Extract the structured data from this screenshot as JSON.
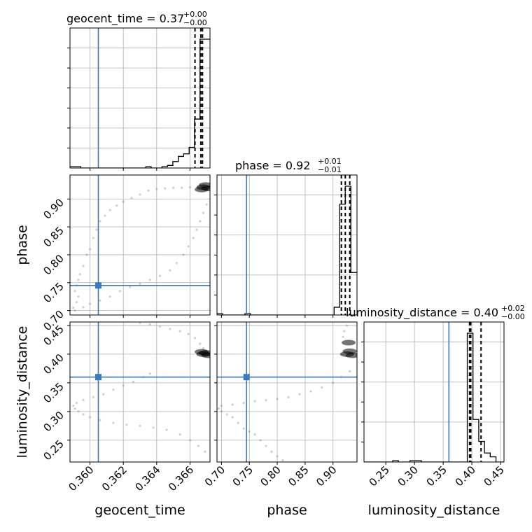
{
  "chart_data": {
    "type": "scatter",
    "plot_kind": "corner",
    "parameters": [
      "geocent_time",
      "phase",
      "luminosity_distance"
    ],
    "truths": {
      "geocent_time": 0.3605,
      "phase": 0.745,
      "luminosity_distance": 0.36
    },
    "ranges": {
      "geocent_time": [
        0.3588,
        0.3672
      ],
      "phase": [
        0.692,
        0.943
      ],
      "luminosity_distance": [
        0.212,
        0.456
      ]
    },
    "ticks": {
      "geocent_time": [
        "0.360",
        "0.362",
        "0.364",
        "0.366"
      ],
      "phase": [
        "0.70",
        "0.75",
        "0.80",
        "0.85",
        "0.90"
      ],
      "luminosity_distance": [
        "0.25",
        "0.30",
        "0.35",
        "0.40",
        "0.45"
      ]
    },
    "titles": {
      "geocent_time": {
        "main": "geocent_time = 0.37",
        "sup": "+0.00",
        "sub": "−0.00"
      },
      "phase": {
        "main": "phase = 0.92",
        "sup": "+0.01",
        "sub": "−0.01"
      },
      "luminosity_distance": {
        "main": "luminosity_distance = 0.40",
        "sup": "+0.02",
        "sub": "−0.00"
      }
    },
    "axis_labels": {
      "geocent_time": "geocent_time",
      "phase": "phase",
      "luminosity_distance": "luminosity_distance"
    },
    "quantiles": {
      "geocent_time": [
        0.3663,
        0.36665,
        0.36675
      ],
      "phase": [
        0.915,
        0.922,
        0.93
      ],
      "luminosity_distance": [
        0.396,
        0.398,
        0.416
      ]
    },
    "histograms": {
      "geocent_time": {
        "edges": [
          0.3588,
          0.35912,
          0.35945,
          0.35977,
          0.3601,
          0.36042,
          0.36075,
          0.36107,
          0.3614,
          0.36172,
          0.36205,
          0.36237,
          0.3627,
          0.36302,
          0.36335,
          0.36367,
          0.364,
          0.36432,
          0.36465,
          0.36497,
          0.3653,
          0.36562,
          0.36595,
          0.36627,
          0.3666,
          0.36692,
          0.3672
        ],
        "counts": [
          0.01,
          0.01,
          0.0,
          0.0,
          0.0,
          0.0,
          0.0,
          0.0,
          0.0,
          0.0,
          0.0,
          0.0,
          0.0,
          0.0,
          0.01,
          0.0,
          0.0,
          0.01,
          0.02,
          0.05,
          0.09,
          0.11,
          0.16,
          0.38,
          1.0,
          1.0
        ]
      },
      "phase": {
        "edges": [
          0.692,
          0.702,
          0.712,
          0.722,
          0.732,
          0.742,
          0.752,
          0.762,
          0.772,
          0.782,
          0.792,
          0.802,
          0.812,
          0.822,
          0.832,
          0.842,
          0.852,
          0.862,
          0.872,
          0.882,
          0.892,
          0.902,
          0.912,
          0.922,
          0.932,
          0.943
        ],
        "counts": [
          0.01,
          0.0,
          0.0,
          0.0,
          0.0,
          0.01,
          0.0,
          0.0,
          0.0,
          0.0,
          0.0,
          0.0,
          0.0,
          0.0,
          0.0,
          0.0,
          0.0,
          0.0,
          0.0,
          0.0,
          0.0,
          0.06,
          0.86,
          1.0,
          0.33
        ]
      },
      "luminosity_distance": {
        "edges": [
          0.212,
          0.222,
          0.232,
          0.242,
          0.252,
          0.262,
          0.272,
          0.282,
          0.292,
          0.302,
          0.312,
          0.322,
          0.332,
          0.342,
          0.352,
          0.362,
          0.372,
          0.382,
          0.392,
          0.402,
          0.412,
          0.422,
          0.432,
          0.442,
          0.456
        ],
        "counts": [
          0.0,
          0.0,
          0.0,
          0.0,
          0.0,
          0.01,
          0.0,
          0.0,
          0.01,
          0.01,
          0.0,
          0.0,
          0.0,
          0.0,
          0.0,
          0.0,
          0.0,
          0.0,
          1.0,
          0.33,
          0.16,
          0.07,
          0.04,
          0.0
        ]
      }
    },
    "samples": {
      "phase_vs_geocent_time": [
        [
          0.3591,
          0.7
        ],
        [
          0.359,
          0.705
        ],
        [
          0.3592,
          0.715
        ],
        [
          0.3593,
          0.725
        ],
        [
          0.3591,
          0.735
        ],
        [
          0.3592,
          0.745
        ],
        [
          0.3593,
          0.755
        ],
        [
          0.3594,
          0.765
        ],
        [
          0.3596,
          0.78
        ],
        [
          0.3598,
          0.8
        ],
        [
          0.36,
          0.81
        ],
        [
          0.3602,
          0.83
        ],
        [
          0.3604,
          0.845
        ],
        [
          0.3606,
          0.86
        ],
        [
          0.3609,
          0.87
        ],
        [
          0.3612,
          0.88
        ],
        [
          0.3616,
          0.888
        ],
        [
          0.362,
          0.895
        ],
        [
          0.3625,
          0.902
        ],
        [
          0.363,
          0.908
        ],
        [
          0.3635,
          0.915
        ],
        [
          0.364,
          0.918
        ],
        [
          0.3645,
          0.919
        ],
        [
          0.365,
          0.92
        ],
        [
          0.3655,
          0.92
        ],
        [
          0.366,
          0.921
        ],
        [
          0.3665,
          0.922
        ],
        [
          0.3668,
          0.925
        ],
        [
          0.3596,
          0.706
        ],
        [
          0.36,
          0.712
        ],
        [
          0.3606,
          0.718
        ],
        [
          0.3612,
          0.725
        ],
        [
          0.3618,
          0.735
        ],
        [
          0.3624,
          0.742
        ],
        [
          0.363,
          0.748
        ],
        [
          0.3636,
          0.755
        ],
        [
          0.3642,
          0.762
        ],
        [
          0.3648,
          0.772
        ],
        [
          0.3652,
          0.785
        ],
        [
          0.3656,
          0.8
        ],
        [
          0.3659,
          0.815
        ],
        [
          0.3662,
          0.83
        ],
        [
          0.3664,
          0.845
        ],
        [
          0.3666,
          0.86
        ],
        [
          0.3668,
          0.875
        ],
        [
          0.367,
          0.89
        ]
      ],
      "phase_vs_geocent_time_dense": [
        [
          0.3668,
          0.921
        ],
        [
          0.36695,
          0.925
        ],
        [
          0.3671,
          0.919
        ],
        [
          0.3667,
          0.917
        ]
      ],
      "distance_vs_geocent_time": [
        [
          0.359,
          0.31
        ],
        [
          0.3591,
          0.305
        ],
        [
          0.3593,
          0.3
        ],
        [
          0.3596,
          0.295
        ],
        [
          0.36,
          0.29
        ],
        [
          0.3606,
          0.285
        ],
        [
          0.3614,
          0.28
        ],
        [
          0.3622,
          0.277
        ],
        [
          0.363,
          0.275
        ],
        [
          0.3638,
          0.272
        ],
        [
          0.3646,
          0.268
        ],
        [
          0.3654,
          0.26
        ],
        [
          0.366,
          0.25
        ],
        [
          0.3665,
          0.24
        ],
        [
          0.3669,
          0.23
        ],
        [
          0.3592,
          0.315
        ],
        [
          0.3596,
          0.32
        ],
        [
          0.3602,
          0.325
        ],
        [
          0.3608,
          0.33
        ],
        [
          0.3614,
          0.338
        ],
        [
          0.362,
          0.345
        ],
        [
          0.3626,
          0.352
        ],
        [
          0.3632,
          0.36
        ],
        [
          0.3636,
          0.366
        ],
        [
          0.363,
          0.455
        ],
        [
          0.3636,
          0.452
        ],
        [
          0.3642,
          0.448
        ],
        [
          0.3648,
          0.444
        ],
        [
          0.3654,
          0.44
        ],
        [
          0.3659,
          0.435
        ],
        [
          0.3663,
          0.428
        ],
        [
          0.3666,
          0.418
        ],
        [
          0.3668,
          0.41
        ]
      ],
      "distance_vs_geocent_time_dense": [
        [
          0.3668,
          0.4
        ],
        [
          0.36695,
          0.402
        ],
        [
          0.3671,
          0.398
        ],
        [
          0.3667,
          0.404
        ]
      ],
      "distance_vs_phase": [
        [
          0.695,
          0.305
        ],
        [
          0.7,
          0.3
        ],
        [
          0.71,
          0.295
        ],
        [
          0.72,
          0.29
        ],
        [
          0.73,
          0.28
        ],
        [
          0.74,
          0.27
        ],
        [
          0.75,
          0.265
        ],
        [
          0.76,
          0.26
        ],
        [
          0.77,
          0.25
        ],
        [
          0.78,
          0.24
        ],
        [
          0.79,
          0.23
        ],
        [
          0.8,
          0.222
        ],
        [
          0.81,
          0.215
        ],
        [
          0.7,
          0.31
        ],
        [
          0.72,
          0.312
        ],
        [
          0.74,
          0.315
        ],
        [
          0.76,
          0.318
        ],
        [
          0.78,
          0.32
        ],
        [
          0.8,
          0.322
        ],
        [
          0.82,
          0.325
        ],
        [
          0.84,
          0.33
        ],
        [
          0.86,
          0.335
        ],
        [
          0.88,
          0.342
        ],
        [
          0.9,
          0.35
        ],
        [
          0.915,
          0.36
        ],
        [
          0.93,
          0.37
        ],
        [
          0.92,
          0.44
        ],
        [
          0.925,
          0.45
        ],
        [
          0.918,
          0.43
        ]
      ],
      "distance_vs_phase_dense": [
        [
          0.925,
          0.4
        ],
        [
          0.93,
          0.405
        ],
        [
          0.935,
          0.398
        ],
        [
          0.928,
          0.42
        ]
      ]
    }
  }
}
